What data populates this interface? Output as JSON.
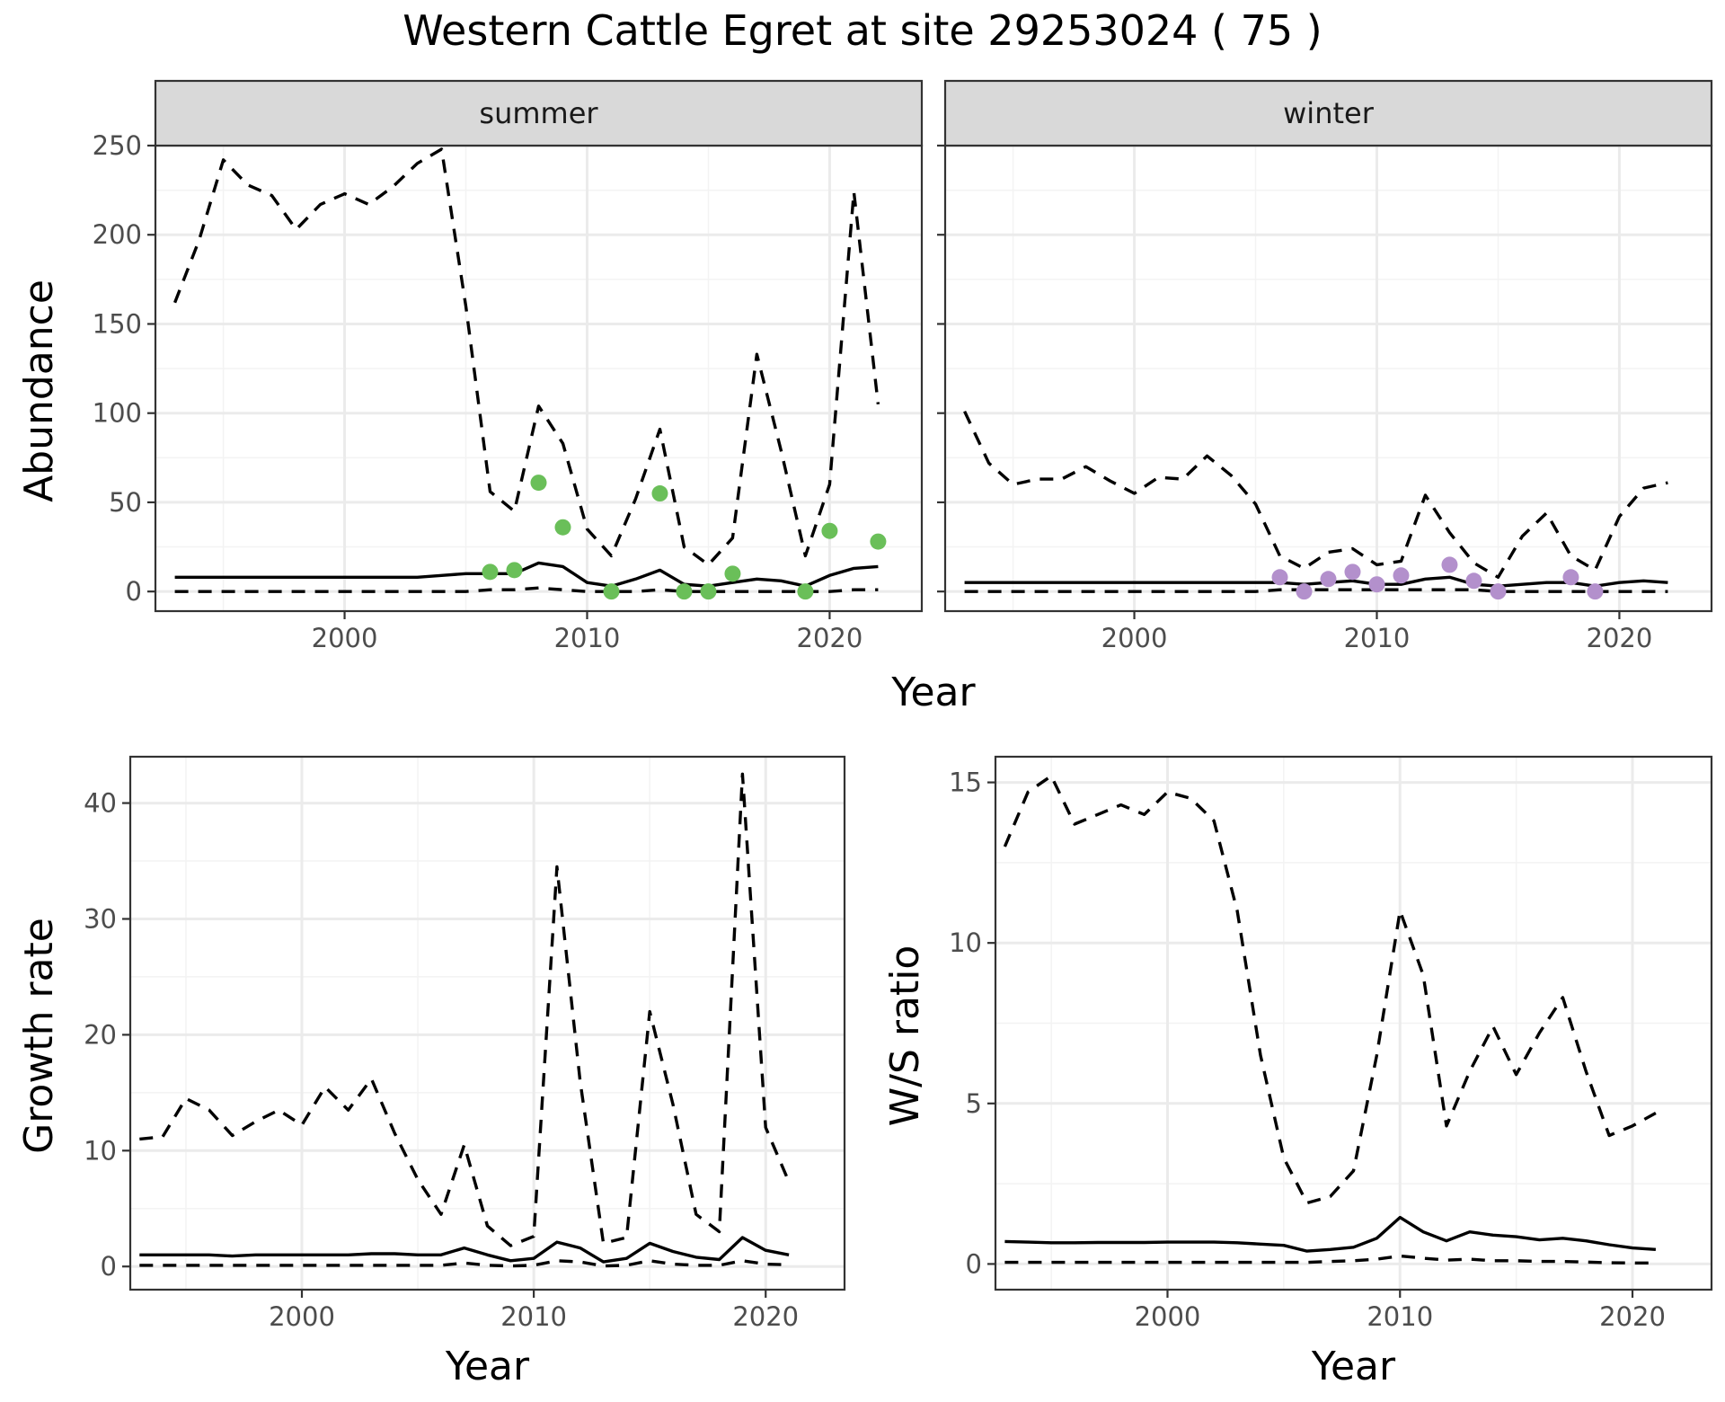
{
  "figure": {
    "title": "Western Cattle Egret at site 29253024 ( 75 )"
  },
  "colors": {
    "summer_points": "#6abf59",
    "winter_points": "#b390cc",
    "lines": "#000000",
    "strip": "#d9d9d9"
  },
  "chart_data": [
    {
      "type": "line",
      "name": "abundance-summer",
      "title": "Western Cattle Egret at site 29253024 ( 75 )",
      "facet": "summer",
      "xlabel": "Year",
      "ylabel": "Abundance",
      "xlim": [
        1992.2,
        2023.8
      ],
      "ylim": [
        -11,
        250
      ],
      "xticks": [
        2000,
        2010,
        2020
      ],
      "yticks": [
        0,
        50,
        100,
        150,
        200,
        250
      ],
      "x": [
        1993,
        1994,
        1995,
        1996,
        1997,
        1998,
        1999,
        2000,
        2001,
        2002,
        2003,
        2004,
        2005,
        2006,
        2007,
        2008,
        2009,
        2010,
        2011,
        2012,
        2013,
        2014,
        2015,
        2016,
        2017,
        2018,
        2019,
        2020,
        2021,
        2022
      ],
      "series": [
        {
          "name": "upper",
          "style": "dashed",
          "values": [
            162,
            197,
            242,
            228,
            222,
            203,
            217,
            223,
            217,
            227,
            240,
            248,
            160,
            56,
            45,
            104,
            83,
            35,
            20,
            52,
            91,
            25,
            15,
            30,
            133,
            79,
            20,
            60,
            224,
            105
          ]
        },
        {
          "name": "mean",
          "style": "solid",
          "values": [
            8,
            8,
            8,
            8,
            8,
            8,
            8,
            8,
            8,
            8,
            8,
            9,
            10,
            10,
            10,
            16,
            14,
            5,
            3,
            7,
            12,
            4,
            3,
            5,
            7,
            6,
            3,
            9,
            13,
            14
          ]
        },
        {
          "name": "lower",
          "style": "dashed",
          "values": [
            0,
            0,
            0,
            0,
            0,
            0,
            0,
            0,
            0,
            0,
            0,
            0,
            0,
            1,
            1,
            2,
            1,
            0,
            0,
            0,
            1,
            0,
            0,
            0,
            0,
            0,
            0,
            0,
            1,
            1
          ]
        }
      ],
      "points": {
        "x": [
          2006,
          2007,
          2008,
          2009,
          2011,
          2013,
          2014,
          2015,
          2016,
          2019,
          2020,
          2022
        ],
        "y": [
          11,
          12,
          61,
          36,
          0,
          55,
          0,
          0,
          10,
          0,
          34,
          28
        ]
      }
    },
    {
      "type": "line",
      "name": "abundance-winter",
      "facet": "winter",
      "xlabel": "Year",
      "ylabel": "Abundance",
      "xlim": [
        1992.2,
        2023.8
      ],
      "ylim": [
        -11,
        250
      ],
      "xticks": [
        2000,
        2010,
        2020
      ],
      "yticks": [
        0,
        50,
        100,
        150,
        200,
        250
      ],
      "x": [
        1993,
        1994,
        1995,
        1996,
        1997,
        1998,
        1999,
        2000,
        2001,
        2002,
        2003,
        2004,
        2005,
        2006,
        2007,
        2008,
        2009,
        2010,
        2011,
        2012,
        2013,
        2014,
        2015,
        2016,
        2017,
        2018,
        2019,
        2020,
        2021,
        2022
      ],
      "series": [
        {
          "name": "upper",
          "style": "dashed",
          "values": [
            101,
            72,
            60,
            63,
            63,
            70,
            62,
            55,
            64,
            63,
            76,
            65,
            49,
            20,
            13,
            22,
            24,
            15,
            17,
            54,
            33,
            16,
            8,
            31,
            44,
            20,
            12,
            42,
            58,
            61
          ]
        },
        {
          "name": "mean",
          "style": "solid",
          "values": [
            5,
            5,
            5,
            5,
            5,
            5,
            5,
            5,
            5,
            5,
            5,
            5,
            5,
            5,
            4,
            5,
            6,
            4,
            4,
            7,
            8,
            4,
            3,
            4,
            5,
            5,
            3,
            5,
            6,
            5
          ]
        },
        {
          "name": "lower",
          "style": "dashed",
          "values": [
            0,
            0,
            0,
            0,
            0,
            0,
            0,
            0,
            0,
            0,
            0,
            0,
            0,
            1,
            1,
            1,
            1,
            1,
            1,
            1,
            1,
            1,
            0,
            0,
            0,
            0,
            0,
            0,
            0,
            0
          ]
        }
      ],
      "points": {
        "x": [
          2006,
          2007,
          2008,
          2009,
          2010,
          2011,
          2013,
          2014,
          2015,
          2018,
          2019
        ],
        "y": [
          8,
          0,
          7,
          11,
          4,
          9,
          15,
          6,
          0,
          8,
          0
        ]
      }
    },
    {
      "type": "line",
      "name": "growth-rate",
      "xlabel": "Year",
      "ylabel": "Growth rate",
      "xlim": [
        1992.6,
        2023.4
      ],
      "ylim": [
        -2,
        44
      ],
      "xticks": [
        2000,
        2010,
        2020
      ],
      "yticks": [
        0,
        10,
        20,
        30,
        40
      ],
      "x": [
        1993,
        1994,
        1995,
        1996,
        1997,
        1998,
        1999,
        2000,
        2001,
        2002,
        2003,
        2004,
        2005,
        2006,
        2007,
        2008,
        2009,
        2010,
        2011,
        2012,
        2013,
        2014,
        2015,
        2016,
        2017,
        2018,
        2019,
        2020,
        2021
      ],
      "series": [
        {
          "name": "upper",
          "style": "dashed",
          "values": [
            11,
            11.2,
            14.5,
            13.5,
            11.3,
            12.5,
            13.5,
            12.2,
            15.5,
            13.5,
            16.2,
            11.5,
            7.5,
            4.5,
            10.5,
            3.5,
            1.8,
            2.6,
            34.5,
            16,
            2,
            2.5,
            22,
            14,
            4.5,
            3,
            42.5,
            12,
            7.3
          ]
        },
        {
          "name": "mean",
          "style": "solid",
          "values": [
            1,
            1,
            1,
            1,
            0.9,
            1,
            1,
            1,
            1,
            1,
            1.1,
            1.1,
            1,
            1,
            1.6,
            1,
            0.5,
            0.7,
            2.1,
            1.6,
            0.4,
            0.7,
            2,
            1.3,
            0.8,
            0.6,
            2.5,
            1.4,
            1
          ]
        },
        {
          "name": "lower",
          "style": "dashed",
          "values": [
            0.1,
            0.1,
            0.1,
            0.1,
            0.1,
            0.1,
            0.1,
            0.1,
            0.1,
            0.1,
            0.1,
            0.1,
            0.1,
            0.1,
            0.3,
            0.1,
            0.05,
            0.1,
            0.5,
            0.4,
            0.05,
            0.1,
            0.5,
            0.2,
            0.1,
            0.1,
            0.5,
            0.2,
            0.15
          ]
        }
      ]
    },
    {
      "type": "line",
      "name": "ws-ratio",
      "xlabel": "Year",
      "ylabel": "W/S ratio",
      "xlim": [
        1992.6,
        2023.4
      ],
      "ylim": [
        -0.8,
        15.8
      ],
      "xticks": [
        2000,
        2010,
        2020
      ],
      "yticks": [
        0,
        5,
        10,
        15
      ],
      "x": [
        1993,
        1994,
        1995,
        1996,
        1997,
        1998,
        1999,
        2000,
        2001,
        2002,
        2003,
        2004,
        2005,
        2006,
        2007,
        2008,
        2009,
        2010,
        2011,
        2012,
        2013,
        2014,
        2015,
        2016,
        2017,
        2018,
        2019,
        2020,
        2021
      ],
      "series": [
        {
          "name": "upper",
          "style": "dashed",
          "values": [
            13,
            14.7,
            15.2,
            13.7,
            14,
            14.3,
            14,
            14.7,
            14.5,
            13.8,
            11,
            6.5,
            3.3,
            1.9,
            2.1,
            2.9,
            6.5,
            11,
            9,
            4.3,
            6,
            7.4,
            5.9,
            7.2,
            8.3,
            6,
            4,
            4.3,
            4.7
          ]
        },
        {
          "name": "mean",
          "style": "solid",
          "values": [
            0.7,
            0.68,
            0.66,
            0.66,
            0.67,
            0.67,
            0.67,
            0.68,
            0.68,
            0.68,
            0.66,
            0.62,
            0.58,
            0.4,
            0.45,
            0.52,
            0.8,
            1.45,
            1,
            0.72,
            1,
            0.9,
            0.85,
            0.75,
            0.8,
            0.72,
            0.6,
            0.5,
            0.45
          ]
        },
        {
          "name": "lower",
          "style": "dashed",
          "values": [
            0.05,
            0.05,
            0.05,
            0.05,
            0.05,
            0.05,
            0.05,
            0.05,
            0.05,
            0.05,
            0.05,
            0.05,
            0.05,
            0.05,
            0.08,
            0.1,
            0.15,
            0.25,
            0.18,
            0.12,
            0.15,
            0.1,
            0.1,
            0.08,
            0.08,
            0.06,
            0.04,
            0.03,
            0.03
          ]
        }
      ]
    }
  ]
}
